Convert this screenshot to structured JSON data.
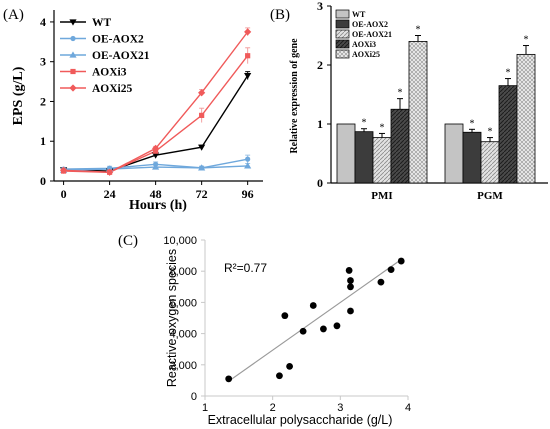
{
  "chart_data": [
    {
      "panel": "(A)",
      "type": "line",
      "xlabel": "Hours (h)",
      "ylabel": "EPS (g/L)",
      "x": [
        0,
        24,
        48,
        72,
        96
      ],
      "xticks": [
        "0",
        "24",
        "48",
        "72",
        "96"
      ],
      "yticks": [
        "0",
        "1",
        "2",
        "3",
        "4"
      ],
      "xlim": [
        -5,
        104
      ],
      "ylim": [
        0,
        4.3
      ],
      "legend_position": "top-left",
      "series": [
        {
          "name": "WT",
          "color": "#000000",
          "marker": "triangle-down",
          "values": [
            0.28,
            0.25,
            0.65,
            0.85,
            2.65
          ],
          "errors": [
            0.02,
            0.02,
            0.04,
            0.05,
            0.1
          ]
        },
        {
          "name": "OE-AOX2",
          "color": "#6fa8dc",
          "marker": "circle",
          "values": [
            0.3,
            0.32,
            0.42,
            0.33,
            0.55
          ],
          "errors": [
            0.04,
            0.05,
            0.06,
            0.04,
            0.1
          ]
        },
        {
          "name": "OE-AOX21",
          "color": "#6fa8dc",
          "marker": "triangle-up",
          "values": [
            0.27,
            0.3,
            0.35,
            0.33,
            0.38
          ],
          "errors": [
            0.03,
            0.04,
            0.05,
            0.04,
            0.06
          ]
        },
        {
          "name": "AOXi3",
          "color": "#f05a5a",
          "marker": "square",
          "values": [
            0.25,
            0.22,
            0.75,
            1.65,
            3.15
          ],
          "errors": [
            0.02,
            0.02,
            0.05,
            0.18,
            0.2
          ]
        },
        {
          "name": "AOXi25",
          "color": "#f05a5a",
          "marker": "diamond",
          "values": [
            0.27,
            0.22,
            0.82,
            2.22,
            3.75
          ],
          "errors": [
            0.02,
            0.02,
            0.05,
            0.08,
            0.1
          ]
        }
      ]
    },
    {
      "panel": "(B)",
      "type": "bar",
      "ylabel": "Relative expression of gene",
      "categories": [
        "PMI",
        "PGM"
      ],
      "yticks": [
        "0",
        "1",
        "2",
        "3"
      ],
      "ylim": [
        0,
        3
      ],
      "legend_position": "top-left",
      "series": [
        {
          "name": "WT",
          "fill": "light-gray",
          "values": [
            1.0,
            1.0
          ],
          "errors": [
            0,
            0
          ],
          "stars": [
            "",
            ""
          ]
        },
        {
          "name": "OE-AOX2",
          "fill": "dark-gray",
          "values": [
            0.87,
            0.86
          ],
          "errors": [
            0.05,
            0.05
          ],
          "stars": [
            "*",
            "*"
          ]
        },
        {
          "name": "OE-AOX21",
          "fill": "hatched-gray",
          "values": [
            0.77,
            0.7
          ],
          "errors": [
            0.07,
            0.07
          ],
          "stars": [
            "*",
            "*"
          ]
        },
        {
          "name": "AOXi3",
          "fill": "dark-hatched",
          "values": [
            1.25,
            1.65
          ],
          "errors": [
            0.18,
            0.12
          ],
          "stars": [
            "*",
            "*"
          ]
        },
        {
          "name": "AOXi25",
          "fill": "light-hatched",
          "values": [
            2.4,
            2.18
          ],
          "errors": [
            0.1,
            0.15
          ],
          "stars": [
            "*",
            "*"
          ]
        }
      ]
    },
    {
      "panel": "(C)",
      "type": "scatter",
      "xlabel": "Extracellular polysaccharide (g/L)",
      "ylabel": "Reactive oxygen species",
      "annotation": "R²=0.77",
      "xticks": [
        "1",
        "2",
        "3",
        "4"
      ],
      "yticks": [
        "0",
        "2,000",
        "4,000",
        "6,000",
        "8,000",
        "10,000"
      ],
      "xlim": [
        1,
        4
      ],
      "ylim": [
        0,
        10000
      ],
      "grid": false,
      "points": [
        {
          "x": 1.35,
          "y": 1100
        },
        {
          "x": 2.1,
          "y": 1300
        },
        {
          "x": 2.25,
          "y": 1900
        },
        {
          "x": 2.18,
          "y": 5150
        },
        {
          "x": 2.45,
          "y": 4150
        },
        {
          "x": 2.6,
          "y": 5800
        },
        {
          "x": 2.75,
          "y": 4300
        },
        {
          "x": 2.95,
          "y": 4500
        },
        {
          "x": 3.15,
          "y": 5450
        },
        {
          "x": 3.15,
          "y": 7000
        },
        {
          "x": 3.15,
          "y": 7400
        },
        {
          "x": 3.13,
          "y": 8050
        },
        {
          "x": 3.6,
          "y": 7300
        },
        {
          "x": 3.75,
          "y": 8100
        },
        {
          "x": 3.9,
          "y": 8650
        }
      ],
      "trendline": {
        "x": [
          1.35,
          3.9
        ],
        "y": [
          950,
          8750
        ]
      }
    }
  ]
}
